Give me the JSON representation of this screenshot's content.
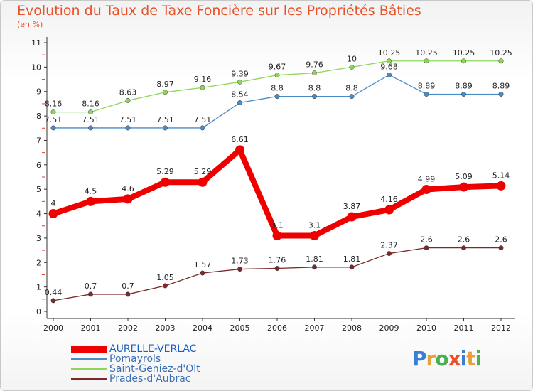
{
  "header": {
    "title": "Evolution du Taux de Taxe Foncière sur les Propriétés Bâties",
    "subtitle": "(en %)"
  },
  "logo": {
    "letters": [
      "P",
      "r",
      "o",
      "x",
      "i",
      "t",
      "i"
    ],
    "colors": [
      "#3a7fd5",
      "#e8a13a",
      "#4caf50",
      "#e8522a",
      "#3a7fd5",
      "#e8a13a",
      "#4caf50"
    ]
  },
  "chart_data": {
    "type": "line",
    "title": "Evolution du Taux de Taxe Foncière sur les Propriétés Bâties",
    "ylabel": "(en %)",
    "x": [
      "2000",
      "2001",
      "2002",
      "2003",
      "2004",
      "2005",
      "2006",
      "2007",
      "2008",
      "2009",
      "2010",
      "2011",
      "2012"
    ],
    "ylim": [
      0,
      11
    ],
    "yticks": [
      "0",
      "1",
      "2",
      "3",
      "4",
      "5",
      "6",
      "7",
      "8",
      "9",
      "10",
      "11"
    ],
    "grid": false,
    "legend_position": "bottom-left",
    "series": [
      {
        "name": "AURELLE-VERLAC",
        "color": "#ee0000",
        "emphasis": true,
        "values": [
          4,
          4.5,
          4.6,
          5.29,
          5.29,
          6.61,
          3.1,
          3.1,
          3.87,
          4.16,
          4.99,
          5.09,
          5.14
        ],
        "labels": [
          "4",
          "4.5",
          "4.6",
          "5.29",
          "5.29",
          "6.61",
          "3.1",
          "3.1",
          "3.87",
          "4.16",
          "4.99",
          "5.09",
          "5.14"
        ]
      },
      {
        "name": "Pomayrols",
        "color": "#4a8cc6",
        "values": [
          7.51,
          7.51,
          7.51,
          7.51,
          7.51,
          8.54,
          8.8,
          8.8,
          8.8,
          9.68,
          8.89,
          8.89,
          8.89
        ],
        "labels": [
          "7.51",
          "7.51",
          "7.51",
          "7.51",
          "7.51",
          "8.54",
          "8.8",
          "8.8",
          "8.8",
          "9.68",
          "8.89",
          "8.89",
          "8.89"
        ]
      },
      {
        "name": "Saint-Geniez-d'Olt",
        "color": "#8ed65a",
        "values": [
          8.16,
          8.16,
          8.63,
          8.97,
          9.16,
          9.39,
          9.67,
          9.76,
          10,
          10.25,
          10.25,
          10.25,
          10.25
        ],
        "labels": [
          "8.16",
          "8.16",
          "8.63",
          "8.97",
          "9.16",
          "9.39",
          "9.67",
          "9.76",
          "10",
          "10.25",
          "10.25",
          "10.25",
          "10.25"
        ]
      },
      {
        "name": "Prades-d'Aubrac",
        "color": "#7a2a2a",
        "values": [
          0.44,
          0.7,
          0.7,
          1.05,
          1.57,
          1.73,
          1.76,
          1.81,
          1.81,
          2.37,
          2.6,
          2.6,
          2.6
        ],
        "labels": [
          "0.44",
          "0.7",
          "0.7",
          "1.05",
          "1.57",
          "1.73",
          "1.76",
          "1.81",
          "1.81",
          "2.37",
          "2.6",
          "2.6",
          "2.6"
        ]
      }
    ]
  }
}
